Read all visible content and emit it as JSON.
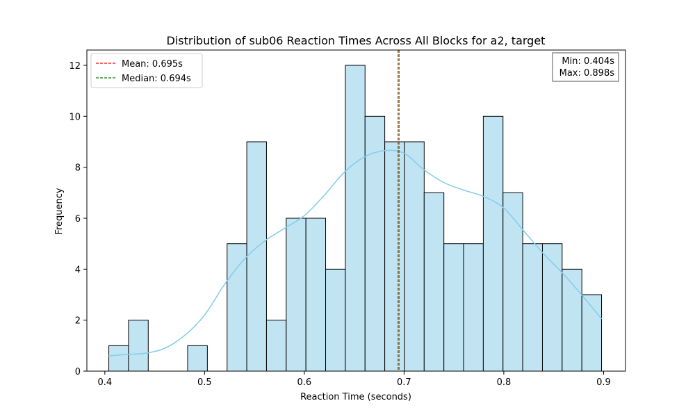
{
  "chart_data": {
    "type": "bar",
    "title": "Distribution of sub06 Reaction Times Across All Blocks for a2, target",
    "xlabel": "Reaction Time (seconds)",
    "ylabel": "Frequency",
    "xlim": [
      0.382,
      0.922
    ],
    "ylim": [
      0,
      12.6
    ],
    "xticks": [
      0.4,
      0.5,
      0.6,
      0.7,
      0.8,
      0.9
    ],
    "xtick_labels": [
      "0.4",
      "0.5",
      "0.6",
      "0.7",
      "0.8",
      "0.9"
    ],
    "yticks": [
      0,
      2,
      4,
      6,
      8,
      10,
      12
    ],
    "ytick_labels": [
      "0",
      "2",
      "4",
      "6",
      "8",
      "10",
      "12"
    ],
    "bins": {
      "start": 0.404,
      "end": 0.898,
      "counts": [
        1,
        2,
        0,
        0,
        1,
        0,
        5,
        9,
        2,
        6,
        6,
        4,
        12,
        10,
        9,
        9,
        7,
        5,
        5,
        10,
        7,
        5,
        5,
        4,
        3
      ]
    },
    "kde": {
      "x": [
        0.404,
        0.42,
        0.44,
        0.46,
        0.48,
        0.5,
        0.52,
        0.54,
        0.56,
        0.58,
        0.6,
        0.62,
        0.64,
        0.66,
        0.68,
        0.7,
        0.72,
        0.74,
        0.76,
        0.78,
        0.8,
        0.82,
        0.84,
        0.86,
        0.88,
        0.898
      ],
      "y": [
        0.6,
        0.65,
        0.7,
        0.9,
        1.4,
        2.2,
        3.4,
        4.4,
        5.1,
        5.6,
        6.1,
        6.9,
        7.8,
        8.4,
        8.65,
        8.55,
        7.9,
        7.4,
        7.1,
        6.85,
        6.4,
        5.5,
        4.6,
        3.8,
        2.9,
        2.05
      ]
    },
    "bar_color": "#c1e4f3",
    "bar_edge_color": "#000000",
    "kde_color": "#87ceeb",
    "mean": {
      "value": 0.695,
      "label": "Mean: 0.695s",
      "color": "#ff0000"
    },
    "median": {
      "value": 0.694,
      "label": "Median: 0.694s",
      "color": "#008000"
    },
    "stats_box": {
      "min_label": "Min: 0.404s",
      "max_label": "Max: 0.898s"
    },
    "legend_position": "upper-left",
    "grid": false
  }
}
